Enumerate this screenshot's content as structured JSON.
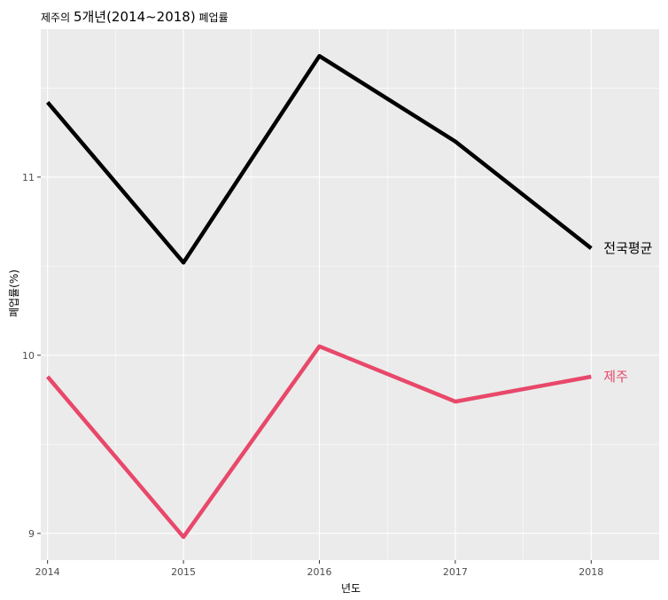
{
  "chart_data": {
    "type": "line",
    "title_prefix": "제주의 ",
    "title_main": "5개년(2014~2018)",
    "title_suffix": " 폐업률",
    "xlabel": "년도",
    "ylabel": "폐업률(%)",
    "x": [
      2014,
      2015,
      2016,
      2017,
      2018
    ],
    "x_tick_labels": [
      "2014",
      "2015",
      "2016",
      "2017",
      "2018"
    ],
    "xlim": [
      2013.95,
      2018.5
    ],
    "y_ticks": [
      9,
      10,
      11
    ],
    "y_tick_labels": [
      "9",
      "10",
      "11"
    ],
    "ylim": [
      8.85,
      11.83
    ],
    "grid": true,
    "panel_background": "#ebebeb",
    "series": [
      {
        "name": "전국평균",
        "color": "#000000",
        "values": [
          11.42,
          10.52,
          11.68,
          11.2,
          10.6
        ]
      },
      {
        "name": "제주",
        "color": "#e8486a",
        "values": [
          9.88,
          8.98,
          10.05,
          9.74,
          9.88
        ]
      }
    ]
  }
}
